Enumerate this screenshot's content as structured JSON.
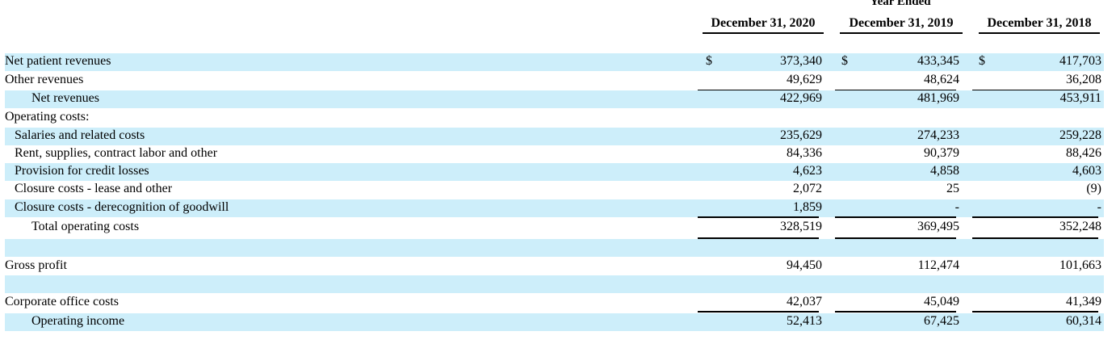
{
  "header": {
    "period_label": "Year Ended",
    "columns": [
      "December 31, 2020",
      "December 31, 2019",
      "December 31, 2018"
    ]
  },
  "currency_symbol": "$",
  "rows": [
    {
      "label": "Net patient revenues",
      "values": [
        "373,340",
        "433,345",
        "417,703"
      ],
      "currency": true
    },
    {
      "label": "Other revenues",
      "values": [
        "49,629",
        "48,624",
        "36,208"
      ]
    },
    {
      "label": "Net revenues",
      "values": [
        "422,969",
        "481,969",
        "453,911"
      ]
    },
    {
      "label": "Operating costs:",
      "values": [
        "",
        "",
        ""
      ]
    },
    {
      "label": "Salaries and related costs",
      "values": [
        "235,629",
        "274,233",
        "259,228"
      ]
    },
    {
      "label": "Rent, supplies, contract labor and other",
      "values": [
        "84,336",
        "90,379",
        "88,426"
      ]
    },
    {
      "label": "Provision for credit losses",
      "values": [
        "4,623",
        "4,858",
        "4,603"
      ]
    },
    {
      "label": "Closure costs - lease and other",
      "values": [
        "2,072",
        "25",
        "(9)"
      ]
    },
    {
      "label": "Closure costs - derecognition of goodwill",
      "values": [
        "1,859",
        "-",
        "-"
      ]
    },
    {
      "label": "Total operating costs",
      "values": [
        "328,519",
        "369,495",
        "352,248"
      ]
    },
    {
      "label": "",
      "values": [
        "",
        "",
        ""
      ]
    },
    {
      "label": "Gross profit",
      "values": [
        "94,450",
        "112,474",
        "101,663"
      ]
    },
    {
      "label": "",
      "values": [
        "",
        "",
        ""
      ]
    },
    {
      "label": "Corporate office costs",
      "values": [
        "42,037",
        "45,049",
        "41,349"
      ]
    },
    {
      "label": "Operating income",
      "values": [
        "52,413",
        "67,425",
        "60,314"
      ]
    }
  ]
}
